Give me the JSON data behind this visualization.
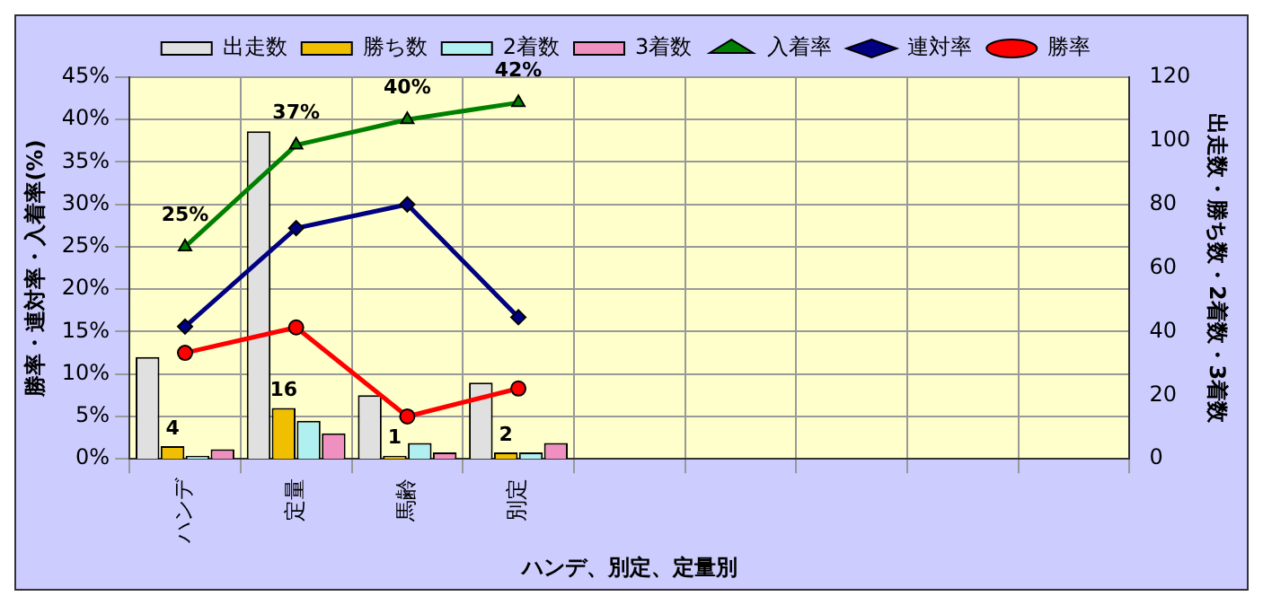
{
  "chart_data": {
    "type": "bar",
    "categories": [
      "ハンデ",
      "定量",
      "馬齢",
      "別定",
      null,
      null,
      null,
      null,
      null
    ],
    "series": [
      {
        "name": "出走数",
        "axis": "y2",
        "color": "#e0e0e0",
        "values": [
          32,
          103,
          20,
          24,
          null,
          null,
          null,
          null,
          null
        ]
      },
      {
        "name": "勝ち数",
        "axis": "y2",
        "color": "#f0c000",
        "values": [
          4,
          16,
          1,
          2,
          null,
          null,
          null,
          null,
          null
        ],
        "value_labels": [
          "4",
          "16",
          "1",
          "2",
          null,
          null,
          null,
          null,
          null
        ]
      },
      {
        "name": "2着数",
        "axis": "y2",
        "color": "#b0f0f0",
        "values": [
          1,
          12,
          5,
          2,
          null,
          null,
          null,
          null,
          null
        ]
      },
      {
        "name": "3着数",
        "axis": "y2",
        "color": "#f090c0",
        "values": [
          3,
          8,
          2,
          5,
          null,
          null,
          null,
          null,
          null
        ]
      },
      {
        "name": "入着率",
        "type": "line",
        "axis": "y",
        "color": "#008000",
        "marker": "triangle",
        "values": [
          25,
          37,
          40,
          42,
          null,
          null,
          null,
          null,
          null
        ],
        "value_labels": [
          "25%",
          "37%",
          "40%",
          "42%",
          null,
          null,
          null,
          null,
          null
        ]
      },
      {
        "name": "連対率",
        "type": "line",
        "axis": "y",
        "color": "#000080",
        "marker": "diamond",
        "values": [
          15.6,
          27.2,
          30,
          16.7,
          null,
          null,
          null,
          null,
          null
        ]
      },
      {
        "name": "勝率",
        "type": "line",
        "axis": "y",
        "color": "#ff0000",
        "marker": "circle",
        "values": [
          12.5,
          15.5,
          5,
          8.3,
          null,
          null,
          null,
          null,
          null
        ]
      }
    ],
    "ylim": [
      0,
      45
    ],
    "yticks": [
      {
        "value": 0,
        "label": "0%"
      },
      {
        "value": 5,
        "label": "5%"
      },
      {
        "value": 10,
        "label": "10%"
      },
      {
        "value": 15,
        "label": "15%"
      },
      {
        "value": 20,
        "label": "20%"
      },
      {
        "value": 25,
        "label": "25%"
      },
      {
        "value": 30,
        "label": "30%"
      },
      {
        "value": 35,
        "label": "35%"
      },
      {
        "value": 40,
        "label": "40%"
      },
      {
        "value": 45,
        "label": "45%"
      }
    ],
    "y2lim": [
      0,
      120
    ],
    "y2ticks": [
      0,
      20,
      40,
      60,
      80,
      100,
      120
    ],
    "xlabel": "ハンデ、別定、定量別",
    "ylabel": "勝率・連対率・入着率(%)",
    "y2label": "出走数・勝ち数・2着数・3着数",
    "grid": true,
    "legend": "top"
  }
}
